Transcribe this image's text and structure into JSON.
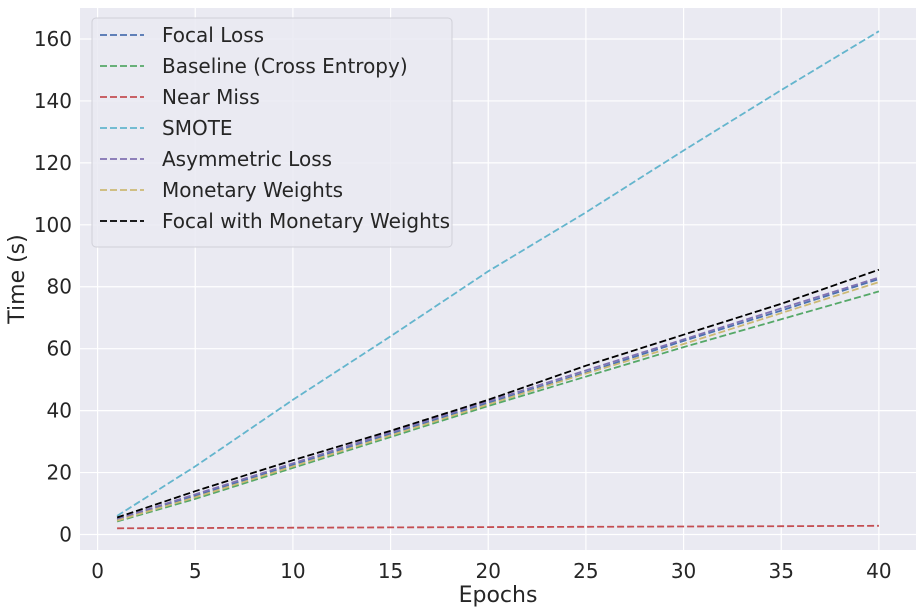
{
  "chart_data": {
    "type": "line",
    "title": "",
    "xlabel": "Epochs",
    "ylabel": "Time (s)",
    "xlim": [
      -0.9,
      41.9
    ],
    "ylim": [
      -5,
      170
    ],
    "xticks": [
      0,
      5,
      10,
      15,
      20,
      25,
      30,
      35,
      40
    ],
    "yticks": [
      0,
      20,
      40,
      60,
      80,
      100,
      120,
      140,
      160
    ],
    "grid": true,
    "legend_position": "top-left",
    "line_style": "dashed",
    "background_color": "#eaeaf2",
    "grid_color": "#ffffff",
    "series": [
      {
        "name": "Focal Loss",
        "color": "#4c72b0",
        "x": [
          1,
          5,
          10,
          15,
          20,
          25,
          30,
          35,
          40
        ],
        "y": [
          4.8,
          12.5,
          22.5,
          32.5,
          42.5,
          52.3,
          62.5,
          72.3,
          82.5
        ]
      },
      {
        "name": "Baseline (Cross Entropy)",
        "color": "#55a868",
        "x": [
          1,
          5,
          10,
          15,
          20,
          25,
          30,
          35,
          40
        ],
        "y": [
          4.2,
          11.5,
          21.5,
          31.5,
          41.5,
          51.0,
          60.5,
          69.5,
          78.5
        ]
      },
      {
        "name": "Near Miss",
        "color": "#c44e52",
        "x": [
          1,
          5,
          10,
          15,
          20,
          25,
          30,
          35,
          40
        ],
        "y": [
          2.0,
          2.1,
          2.2,
          2.3,
          2.4,
          2.5,
          2.6,
          2.7,
          2.8
        ]
      },
      {
        "name": "SMOTE",
        "color": "#64b5cd",
        "x": [
          1,
          5,
          10,
          15,
          20,
          25,
          30,
          35,
          40
        ],
        "y": [
          6.0,
          22.0,
          43.5,
          64.0,
          85.0,
          104.0,
          124.0,
          143.5,
          162.5
        ]
      },
      {
        "name": "Asymmetric Loss",
        "color": "#8172b2",
        "x": [
          1,
          5,
          10,
          15,
          20,
          25,
          30,
          35,
          40
        ],
        "y": [
          5.0,
          13.0,
          23.0,
          33.0,
          43.0,
          53.0,
          63.0,
          73.0,
          83.0
        ]
      },
      {
        "name": "Monetary Weights",
        "color": "#ccb974",
        "x": [
          1,
          5,
          10,
          15,
          20,
          25,
          30,
          35,
          40
        ],
        "y": [
          4.5,
          12.0,
          22.0,
          32.0,
          42.0,
          52.0,
          61.5,
          71.5,
          81.5
        ]
      },
      {
        "name": "Focal with Monetary Weights",
        "color": "#000000",
        "x": [
          1,
          5,
          10,
          15,
          20,
          25,
          30,
          35,
          40
        ],
        "y": [
          5.5,
          14.0,
          24.0,
          33.5,
          43.5,
          54.5,
          64.5,
          74.5,
          85.5
        ]
      }
    ]
  }
}
